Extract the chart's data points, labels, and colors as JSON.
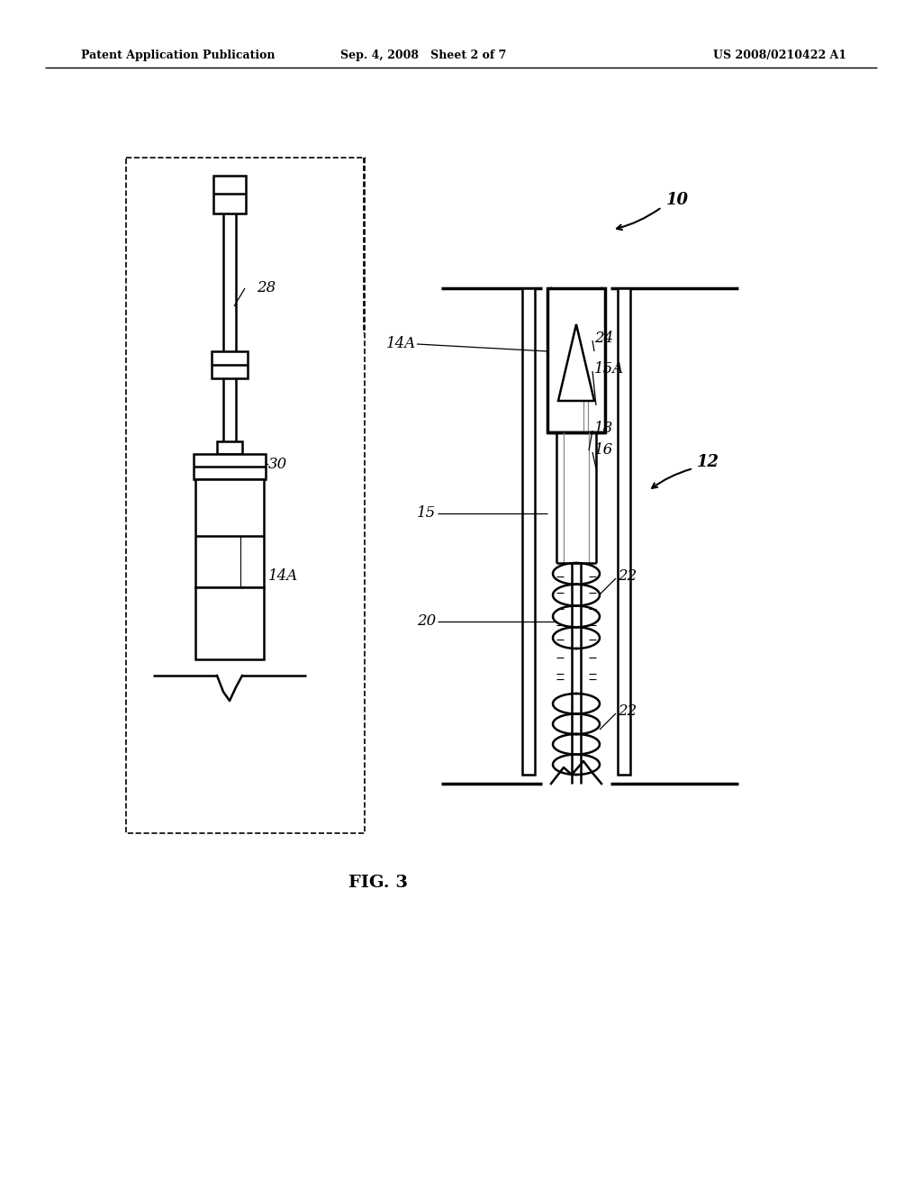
{
  "title": "FIG. 3",
  "header_left": "Patent Application Publication",
  "header_center": "Sep. 4, 2008   Sheet 2 of 7",
  "header_right": "US 2008/0210422 A1",
  "bg_color": "#ffffff",
  "fig_caption": "FIG. 3"
}
